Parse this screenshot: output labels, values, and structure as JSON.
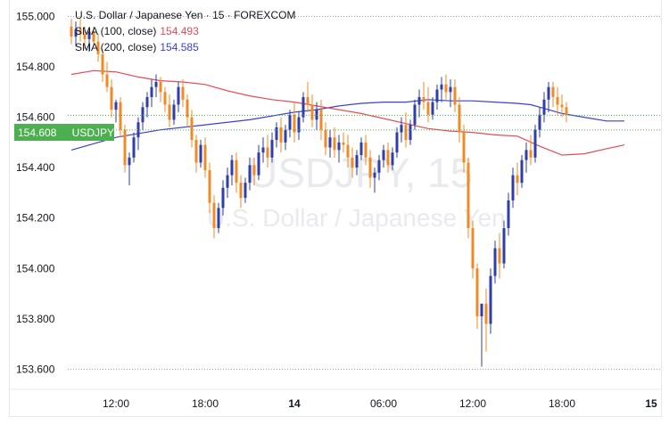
{
  "header": {
    "instrument": "U.S. Dollar / Japanese Yen · 15 · FOREXCOM",
    "sma100_label": "SMA (100, close)",
    "sma100_value": "154.493",
    "sma200_label": "SMA (200, close)",
    "sma200_value": "154.585"
  },
  "price_tag": {
    "price": "154.608",
    "symbol": "USDJPY"
  },
  "watermark": {
    "symbol": "USDJPY, 15",
    "name": "U.S. Dollar / Japanese Yen"
  },
  "colors": {
    "up": "#2f3ea8",
    "down": "#f08a24",
    "sma100": "#e64a55",
    "sma200": "#3a3fd6",
    "last_price": "#4caf50"
  },
  "chart_data": {
    "type": "candlestick",
    "ylim": [
      153.52,
      155.03
    ],
    "y_ticks": [
      "155.000",
      "154.800",
      "154.600",
      "154.400",
      "154.200",
      "154.000",
      "153.800",
      "153.600"
    ],
    "y_tick_values": [
      155.0,
      154.8,
      154.6,
      154.4,
      154.2,
      154.0,
      153.8,
      153.6
    ],
    "x_ticks": [
      {
        "label": "12:00",
        "index": 10,
        "bold": false
      },
      {
        "label": "18:00",
        "index": 30,
        "bold": false
      },
      {
        "label": "14",
        "index": 50,
        "bold": true
      },
      {
        "label": "06:00",
        "index": 70,
        "bold": false
      },
      {
        "label": "12:00",
        "index": 90,
        "bold": false
      },
      {
        "label": "18:00",
        "index": 110,
        "bold": false
      },
      {
        "label": "15",
        "index": 130,
        "bold": true
      }
    ],
    "x_range": [
      -1,
      128
    ],
    "last_price": 154.608,
    "candles": [
      [
        154.96,
        154.99,
        154.89,
        154.92
      ],
      [
        154.92,
        154.98,
        154.88,
        154.95
      ],
      [
        154.95,
        154.99,
        154.9,
        154.93
      ],
      [
        154.93,
        154.96,
        154.87,
        154.91
      ],
      [
        154.91,
        154.95,
        154.86,
        154.94
      ],
      [
        154.94,
        154.96,
        154.88,
        154.9
      ],
      [
        154.9,
        154.93,
        154.82,
        154.85
      ],
      [
        154.85,
        154.87,
        154.74,
        154.77
      ],
      [
        154.77,
        154.82,
        154.7,
        154.72
      ],
      [
        154.72,
        154.75,
        154.6,
        154.63
      ],
      [
        154.63,
        154.67,
        154.58,
        154.66
      ],
      [
        154.66,
        154.68,
        154.52,
        154.55
      ],
      [
        154.55,
        154.57,
        154.38,
        154.41
      ],
      [
        154.41,
        154.46,
        154.33,
        154.44
      ],
      [
        154.44,
        154.54,
        154.42,
        154.52
      ],
      [
        154.52,
        154.6,
        154.47,
        154.58
      ],
      [
        154.58,
        154.66,
        154.55,
        154.64
      ],
      [
        154.64,
        154.7,
        154.6,
        154.68
      ],
      [
        154.68,
        154.75,
        154.64,
        154.72
      ],
      [
        154.72,
        154.77,
        154.68,
        154.74
      ],
      [
        154.74,
        154.76,
        154.66,
        154.7
      ],
      [
        154.7,
        154.72,
        154.62,
        154.65
      ],
      [
        154.65,
        154.69,
        154.56,
        154.59
      ],
      [
        154.59,
        154.67,
        154.57,
        154.65
      ],
      [
        154.65,
        154.74,
        154.62,
        154.72
      ],
      [
        154.72,
        154.75,
        154.64,
        154.67
      ],
      [
        154.67,
        154.69,
        154.56,
        154.6
      ],
      [
        154.6,
        154.63,
        154.48,
        154.51
      ],
      [
        154.51,
        154.53,
        154.38,
        154.42
      ],
      [
        154.42,
        154.51,
        154.4,
        154.49
      ],
      [
        154.49,
        154.52,
        154.36,
        154.39
      ],
      [
        154.39,
        154.42,
        154.22,
        154.26
      ],
      [
        154.26,
        154.29,
        154.12,
        154.16
      ],
      [
        154.16,
        154.26,
        154.14,
        154.24
      ],
      [
        154.24,
        154.35,
        154.21,
        154.32
      ],
      [
        154.32,
        154.4,
        154.28,
        154.37
      ],
      [
        154.37,
        154.45,
        154.33,
        154.43
      ],
      [
        154.43,
        154.46,
        154.3,
        154.34
      ],
      [
        154.34,
        154.37,
        154.24,
        154.28
      ],
      [
        154.28,
        154.36,
        154.26,
        154.34
      ],
      [
        154.34,
        154.44,
        154.31,
        154.41
      ],
      [
        154.41,
        154.44,
        154.33,
        154.37
      ],
      [
        154.37,
        154.49,
        154.35,
        154.46
      ],
      [
        154.46,
        154.52,
        154.42,
        154.48
      ],
      [
        154.48,
        154.53,
        154.4,
        154.44
      ],
      [
        154.44,
        154.54,
        154.42,
        154.51
      ],
      [
        154.51,
        154.58,
        154.48,
        154.56
      ],
      [
        154.56,
        154.6,
        154.46,
        154.5
      ],
      [
        154.5,
        154.57,
        154.47,
        154.55
      ],
      [
        154.55,
        154.63,
        154.52,
        154.61
      ],
      [
        154.61,
        154.66,
        154.5,
        154.54
      ],
      [
        154.54,
        154.62,
        154.51,
        154.6
      ],
      [
        154.6,
        154.7,
        154.58,
        154.68
      ],
      [
        154.68,
        154.74,
        154.62,
        154.65
      ],
      [
        154.65,
        154.69,
        154.56,
        154.59
      ],
      [
        154.59,
        154.66,
        154.55,
        154.63
      ],
      [
        154.63,
        154.67,
        154.51,
        154.55
      ],
      [
        154.55,
        154.58,
        154.45,
        154.48
      ],
      [
        154.48,
        154.55,
        154.44,
        154.52
      ],
      [
        154.52,
        154.56,
        154.44,
        154.47
      ],
      [
        154.47,
        154.53,
        154.42,
        154.5
      ],
      [
        154.5,
        154.54,
        154.46,
        154.49
      ],
      [
        154.49,
        154.53,
        154.4,
        154.44
      ],
      [
        154.44,
        154.48,
        154.36,
        154.4
      ],
      [
        154.4,
        154.47,
        154.37,
        154.45
      ],
      [
        154.45,
        154.52,
        154.43,
        154.5
      ],
      [
        154.5,
        154.53,
        154.41,
        154.44
      ],
      [
        154.44,
        154.47,
        154.32,
        154.36
      ],
      [
        154.36,
        154.4,
        154.3,
        154.38
      ],
      [
        154.38,
        154.45,
        154.35,
        154.43
      ],
      [
        154.43,
        154.49,
        154.4,
        154.47
      ],
      [
        154.47,
        154.5,
        154.38,
        154.41
      ],
      [
        154.41,
        154.48,
        154.39,
        154.46
      ],
      [
        154.46,
        154.56,
        154.44,
        154.54
      ],
      [
        154.54,
        154.6,
        154.5,
        154.57
      ],
      [
        154.57,
        154.62,
        154.48,
        154.51
      ],
      [
        154.51,
        154.59,
        154.49,
        154.57
      ],
      [
        154.57,
        154.67,
        154.55,
        154.65
      ],
      [
        154.65,
        154.71,
        154.6,
        154.68
      ],
      [
        154.68,
        154.74,
        154.63,
        154.66
      ],
      [
        154.66,
        154.72,
        154.58,
        154.61
      ],
      [
        154.61,
        154.68,
        154.59,
        154.66
      ],
      [
        154.66,
        154.73,
        154.63,
        154.71
      ],
      [
        154.71,
        154.76,
        154.66,
        154.73
      ],
      [
        154.73,
        154.77,
        154.67,
        154.7
      ],
      [
        154.7,
        154.75,
        154.64,
        154.72
      ],
      [
        154.72,
        154.75,
        154.62,
        154.65
      ],
      [
        154.65,
        154.68,
        154.5,
        154.54
      ],
      [
        154.54,
        154.57,
        154.38,
        154.42
      ],
      [
        154.42,
        154.44,
        154.12,
        154.16
      ],
      [
        154.16,
        154.19,
        153.96,
        154.0
      ],
      [
        154.0,
        154.02,
        153.76,
        153.81
      ],
      [
        153.81,
        153.86,
        153.61,
        153.86
      ],
      [
        153.86,
        153.92,
        153.67,
        153.78
      ],
      [
        153.78,
        154.0,
        153.74,
        153.97
      ],
      [
        153.97,
        154.11,
        153.94,
        154.08
      ],
      [
        154.08,
        154.14,
        153.96,
        154.02
      ],
      [
        154.02,
        154.19,
        154.0,
        154.16
      ],
      [
        154.16,
        154.3,
        154.13,
        154.27
      ],
      [
        154.27,
        154.4,
        154.24,
        154.37
      ],
      [
        154.37,
        154.42,
        154.29,
        154.34
      ],
      [
        154.34,
        154.45,
        154.32,
        154.43
      ],
      [
        154.43,
        154.5,
        154.38,
        154.47
      ],
      [
        154.47,
        154.53,
        154.41,
        154.44
      ],
      [
        154.44,
        154.57,
        154.42,
        154.55
      ],
      [
        154.55,
        154.64,
        154.52,
        154.61
      ],
      [
        154.61,
        154.7,
        154.58,
        154.67
      ],
      [
        154.67,
        154.74,
        154.62,
        154.72
      ],
      [
        154.72,
        154.74,
        154.64,
        154.68
      ],
      [
        154.68,
        154.72,
        154.61,
        154.65
      ],
      [
        154.65,
        154.69,
        154.6,
        154.64
      ],
      [
        154.64,
        154.66,
        154.58,
        154.61
      ]
    ],
    "sma100": [
      [
        0,
        154.77
      ],
      [
        5,
        154.785
      ],
      [
        10,
        154.78
      ],
      [
        15,
        154.76
      ],
      [
        20,
        154.745
      ],
      [
        25,
        154.74
      ],
      [
        30,
        154.73
      ],
      [
        35,
        154.705
      ],
      [
        40,
        154.685
      ],
      [
        45,
        154.67
      ],
      [
        50,
        154.66
      ],
      [
        55,
        154.645
      ],
      [
        60,
        154.63
      ],
      [
        65,
        154.615
      ],
      [
        70,
        154.595
      ],
      [
        75,
        154.575
      ],
      [
        80,
        154.555
      ],
      [
        85,
        154.545
      ],
      [
        90,
        154.54
      ],
      [
        95,
        154.53
      ],
      [
        100,
        154.525
      ],
      [
        105,
        154.485
      ],
      [
        110,
        154.45
      ],
      [
        115,
        154.455
      ],
      [
        120,
        154.475
      ],
      [
        124,
        154.49
      ]
    ],
    "sma200": [
      [
        0,
        154.47
      ],
      [
        10,
        154.52
      ],
      [
        20,
        154.55
      ],
      [
        30,
        154.57
      ],
      [
        40,
        154.59
      ],
      [
        50,
        154.62
      ],
      [
        55,
        154.63
      ],
      [
        60,
        154.645
      ],
      [
        65,
        154.655
      ],
      [
        70,
        154.66
      ],
      [
        75,
        154.66
      ],
      [
        80,
        154.67
      ],
      [
        85,
        154.665
      ],
      [
        90,
        154.665
      ],
      [
        95,
        154.66
      ],
      [
        100,
        154.655
      ],
      [
        103,
        154.65
      ],
      [
        106,
        154.635
      ],
      [
        110,
        154.615
      ],
      [
        115,
        154.6
      ],
      [
        120,
        154.585
      ],
      [
        124,
        154.585
      ]
    ]
  }
}
